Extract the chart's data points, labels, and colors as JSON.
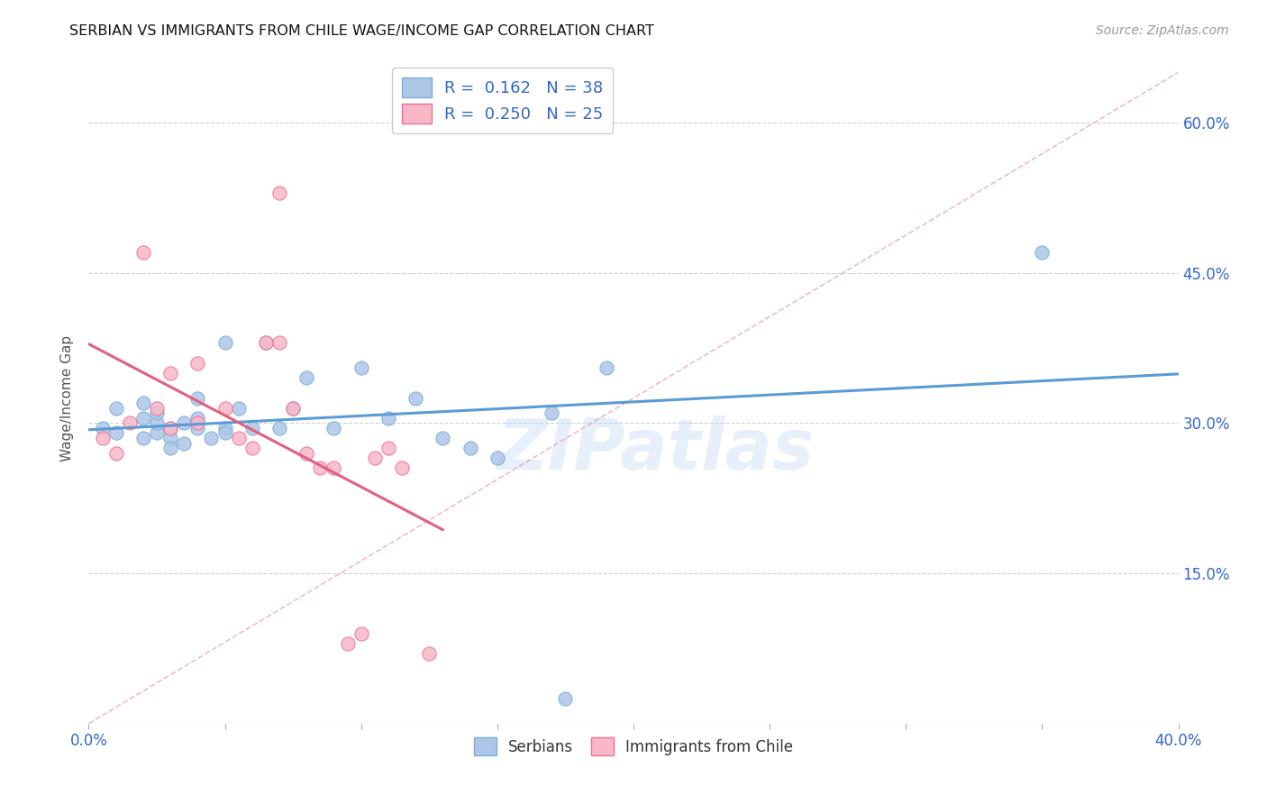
{
  "title": "SERBIAN VS IMMIGRANTS FROM CHILE WAGE/INCOME GAP CORRELATION CHART",
  "source": "Source: ZipAtlas.com",
  "ylabel": "Wage/Income Gap",
  "xlim": [
    0.0,
    0.4
  ],
  "ylim": [
    0.0,
    0.65
  ],
  "xticks": [
    0.0,
    0.05,
    0.1,
    0.15,
    0.2,
    0.25,
    0.3,
    0.35,
    0.4
  ],
  "yticks": [
    0.0,
    0.15,
    0.3,
    0.45,
    0.6
  ],
  "R_serbian": 0.162,
  "N_serbian": 38,
  "R_chile": 0.25,
  "N_chile": 25,
  "color_serbian_fill": "#aec6e8",
  "color_chile_fill": "#f9b8c8",
  "color_serbian_edge": "#7aafd4",
  "color_chile_edge": "#f07090",
  "color_serbian_line": "#5b9bd5",
  "color_chile_line": "#e06080",
  "color_dashed": "#e8a0b0",
  "serbian_scatter_x": [
    0.005,
    0.01,
    0.01,
    0.02,
    0.02,
    0.02,
    0.025,
    0.025,
    0.025,
    0.03,
    0.03,
    0.03,
    0.035,
    0.035,
    0.04,
    0.04,
    0.04,
    0.045,
    0.05,
    0.05,
    0.05,
    0.055,
    0.06,
    0.065,
    0.07,
    0.075,
    0.08,
    0.09,
    0.1,
    0.11,
    0.12,
    0.13,
    0.14,
    0.15,
    0.17,
    0.19,
    0.35,
    0.175
  ],
  "serbian_scatter_y": [
    0.295,
    0.29,
    0.315,
    0.285,
    0.305,
    0.32,
    0.29,
    0.3,
    0.31,
    0.295,
    0.285,
    0.275,
    0.3,
    0.28,
    0.325,
    0.295,
    0.305,
    0.285,
    0.38,
    0.295,
    0.29,
    0.315,
    0.295,
    0.38,
    0.295,
    0.315,
    0.345,
    0.295,
    0.355,
    0.305,
    0.325,
    0.285,
    0.275,
    0.265,
    0.31,
    0.355,
    0.47,
    0.025
  ],
  "chile_scatter_x": [
    0.005,
    0.01,
    0.015,
    0.02,
    0.025,
    0.03,
    0.03,
    0.04,
    0.04,
    0.05,
    0.055,
    0.06,
    0.065,
    0.07,
    0.075,
    0.08,
    0.085,
    0.09,
    0.095,
    0.1,
    0.105,
    0.11,
    0.115,
    0.125,
    0.07
  ],
  "chile_scatter_y": [
    0.285,
    0.27,
    0.3,
    0.47,
    0.315,
    0.35,
    0.295,
    0.36,
    0.3,
    0.315,
    0.285,
    0.275,
    0.38,
    0.38,
    0.315,
    0.27,
    0.255,
    0.255,
    0.08,
    0.09,
    0.265,
    0.275,
    0.255,
    0.07,
    0.53
  ],
  "watermark": "ZIPatlas",
  "legend_serbian_label": "R =  0.162   N = 38",
  "legend_chile_label": "R =  0.250   N = 25",
  "bottom_legend_serbian": "Serbians",
  "bottom_legend_chile": "Immigrants from Chile"
}
